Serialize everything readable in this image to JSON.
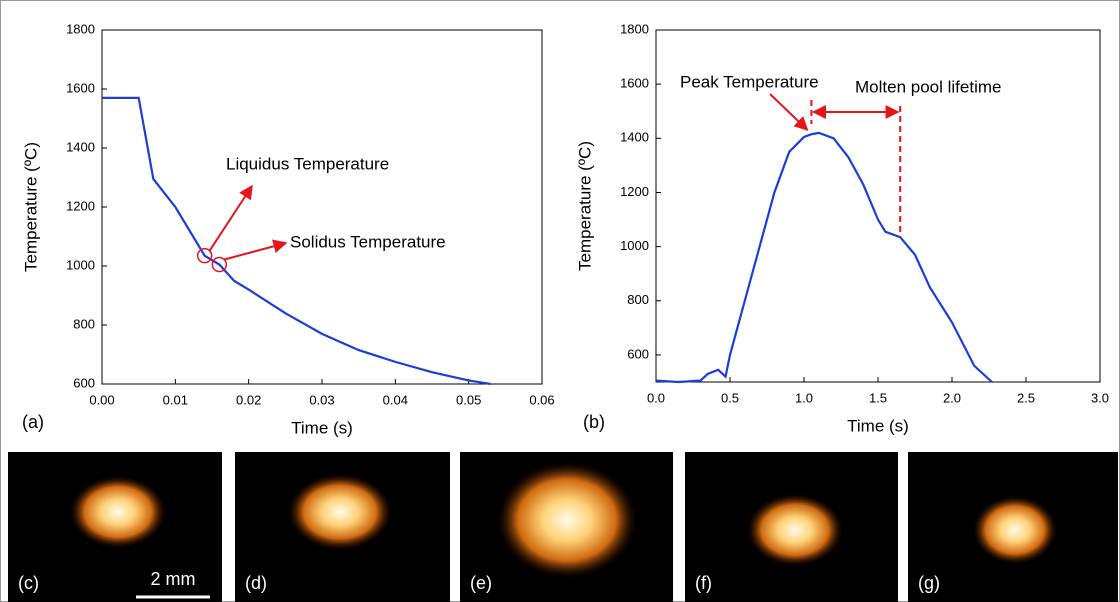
{
  "chart_data": [
    {
      "type": "line",
      "panel": "(a)",
      "xlabel": "Time (s)",
      "ylabel": "Temperature (ºC)",
      "xlim": [
        0,
        0.06
      ],
      "xticks": [
        {
          "value": 0,
          "label": "0.00"
        },
        0.01,
        0.02,
        0.03,
        0.04,
        0.05,
        0.06
      ],
      "ylim": [
        600,
        1800
      ],
      "yticks": [
        600,
        800,
        1000,
        1200,
        1400,
        1600,
        1800
      ],
      "x": [
        0,
        0.005,
        0.007,
        0.01,
        0.014,
        0.016,
        0.018,
        0.02,
        0.025,
        0.03,
        0.035,
        0.04,
        0.045,
        0.05,
        0.053
      ],
      "series": [
        {
          "color": "#1a3fd6",
          "values": [
            1570,
            1570,
            1295,
            1200,
            1035,
            1005,
            950,
            920,
            840,
            770,
            715,
            675,
            640,
            612,
            600
          ]
        }
      ],
      "annotations": [
        {
          "text": "Liquidus Temperature",
          "x": 0.014,
          "y": 1035
        },
        {
          "text": "Solidus Temperature",
          "x": 0.016,
          "y": 1005
        }
      ]
    },
    {
      "type": "line",
      "panel": "(b)",
      "xlabel": "Time (s)",
      "ylabel": "Temperature (ºC)",
      "xlim": [
        0,
        3
      ],
      "xticks": [
        {
          "value": 0,
          "label": "0.0"
        },
        0.5,
        {
          "value": 1,
          "label": "1.0"
        },
        1.5,
        {
          "value": 2,
          "label": "2.0"
        },
        2.5,
        {
          "value": 3,
          "label": "3.0"
        }
      ],
      "ylim": [
        500,
        1800
      ],
      "yticks": [
        600,
        800,
        1000,
        1200,
        1400,
        1600,
        1800
      ],
      "x": [
        0,
        0.15,
        0.3,
        0.35,
        0.42,
        0.47,
        0.5,
        0.6,
        0.7,
        0.8,
        0.9,
        1.0,
        1.05,
        1.1,
        1.2,
        1.3,
        1.4,
        1.5,
        1.55,
        1.65,
        1.75,
        1.85,
        2.0,
        2.15,
        2.27
      ],
      "series": [
        {
          "color": "#1a3fd6",
          "values": [
            505,
            500,
            505,
            530,
            545,
            520,
            600,
            800,
            1000,
            1200,
            1350,
            1405,
            1415,
            1420,
            1400,
            1330,
            1230,
            1100,
            1055,
            1035,
            970,
            850,
            720,
            560,
            500
          ]
        }
      ],
      "annotations": [
        {
          "text": "Peak Temperature",
          "x": 1.05,
          "y": 1420
        },
        {
          "text": "Molten pool lifetime",
          "x": [
            1.05,
            1.65
          ]
        }
      ]
    }
  ],
  "images": {
    "labels": [
      "(c)",
      "(d)",
      "(e)",
      "(f)",
      "(g)"
    ],
    "scale_bar": "2 mm"
  }
}
